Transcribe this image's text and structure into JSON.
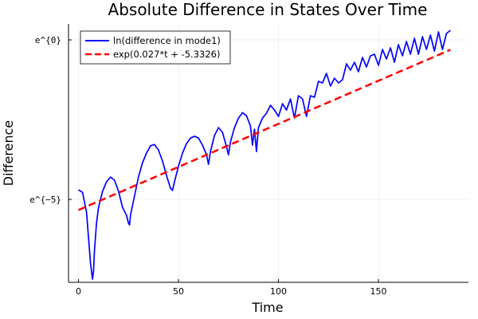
{
  "chart_data": {
    "type": "line",
    "title": "Absolute Difference in States Over Time",
    "xlabel": "Time",
    "ylabel": "Difference",
    "xlim": [
      -5,
      195
    ],
    "ylim": [
      -7.6,
      0.5
    ],
    "y_scale": "log (natural, ln)",
    "grid": true,
    "legend_position": "top-left",
    "xticks": [
      {
        "value": 0,
        "label": "0"
      },
      {
        "value": 50,
        "label": "50"
      },
      {
        "value": 100,
        "label": "100"
      },
      {
        "value": 150,
        "label": "150"
      }
    ],
    "yticks": [
      {
        "value": -5,
        "label": "e^{−5}"
      },
      {
        "value": 0,
        "label": "e^{0}"
      }
    ],
    "series": [
      {
        "name": "ln(difference in mode1)",
        "color": "#0000ff",
        "style": "solid",
        "x": [
          0,
          2,
          4,
          5,
          6,
          7,
          7.5,
          8,
          9,
          10,
          12,
          14,
          16,
          18,
          20,
          22,
          24,
          25,
          25.5,
          26,
          28,
          30,
          32,
          34,
          36,
          38,
          40,
          42,
          44,
          46,
          47,
          48,
          50,
          52,
          54,
          56,
          58,
          60,
          62,
          64,
          65,
          66,
          68,
          70,
          72,
          74,
          75,
          76,
          78,
          80,
          82,
          84,
          86,
          87,
          88,
          89,
          90,
          92,
          94,
          96,
          98,
          100,
          102,
          104,
          106,
          108,
          110,
          112,
          114,
          116,
          118,
          120,
          122,
          124,
          126,
          128,
          130,
          132,
          134,
          136,
          138,
          140,
          142,
          144,
          146,
          148,
          150,
          152,
          154,
          156,
          158,
          160,
          162,
          164,
          166,
          168,
          170,
          172,
          174,
          176,
          178,
          180,
          182,
          184,
          186
        ],
        "values": [
          -4.7,
          -4.78,
          -5.4,
          -6.2,
          -7.0,
          -7.5,
          -7.25,
          -6.6,
          -5.75,
          -5.25,
          -4.75,
          -4.45,
          -4.3,
          -4.4,
          -4.75,
          -5.25,
          -5.5,
          -5.75,
          -5.8,
          -5.5,
          -4.9,
          -4.3,
          -3.85,
          -3.55,
          -3.32,
          -3.28,
          -3.45,
          -3.8,
          -4.25,
          -4.65,
          -4.72,
          -4.45,
          -3.95,
          -3.55,
          -3.25,
          -3.08,
          -3.02,
          -3.08,
          -3.3,
          -3.6,
          -3.9,
          -3.5,
          -3.0,
          -2.75,
          -2.9,
          -3.35,
          -3.6,
          -3.2,
          -2.75,
          -2.45,
          -2.28,
          -2.38,
          -2.7,
          -3.3,
          -2.8,
          -3.5,
          -2.75,
          -2.45,
          -2.3,
          -2.05,
          -2.2,
          -2.4,
          -2.0,
          -2.2,
          -1.85,
          -2.45,
          -1.75,
          -1.85,
          -2.4,
          -1.75,
          -1.8,
          -1.3,
          -1.35,
          -1.05,
          -1.45,
          -1.2,
          -1.35,
          -1.25,
          -0.75,
          -0.95,
          -0.7,
          -1.0,
          -0.55,
          -0.85,
          -0.5,
          -0.45,
          -0.8,
          -0.3,
          -0.6,
          -0.25,
          -0.7,
          -0.15,
          -0.5,
          -0.05,
          -0.45,
          0.05,
          -0.45,
          0.1,
          -0.3,
          0.15,
          -0.35,
          0.25,
          -0.3,
          0.2,
          0.3
        ]
      },
      {
        "name": "exp(0.027*t + -5.3326)",
        "color": "#ff0000",
        "style": "dashed",
        "x": [
          0,
          186
        ],
        "values": [
          -5.3326,
          -0.3106
        ]
      }
    ]
  }
}
